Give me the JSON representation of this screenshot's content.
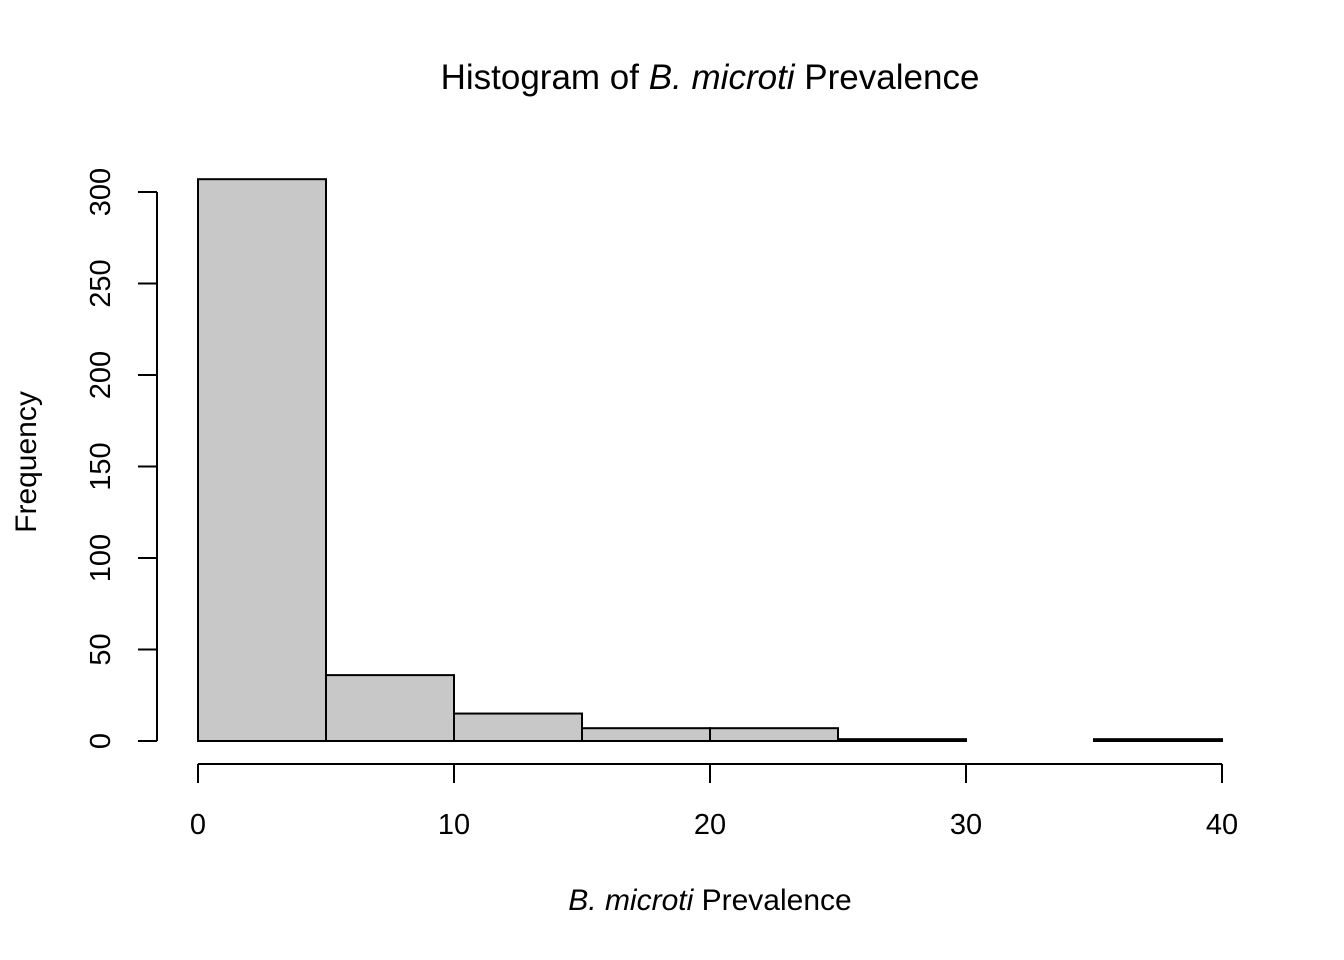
{
  "chart_data": {
    "type": "bar",
    "title_prefix": "Histogram of ",
    "title_italic": "B. microti",
    "title_suffix": " Prevalence",
    "xlabel_italic": "B. microti",
    "xlabel_suffix": " Prevalence",
    "ylabel": "Frequency",
    "bins": [
      {
        "start": 0,
        "end": 5,
        "count": 307
      },
      {
        "start": 5,
        "end": 10,
        "count": 36
      },
      {
        "start": 10,
        "end": 15,
        "count": 15
      },
      {
        "start": 15,
        "end": 20,
        "count": 7
      },
      {
        "start": 20,
        "end": 25,
        "count": 7
      },
      {
        "start": 25,
        "end": 30,
        "count": 1
      },
      {
        "start": 30,
        "end": 35,
        "count": 0
      },
      {
        "start": 35,
        "end": 40,
        "count": 1
      }
    ],
    "xlim": [
      0,
      40
    ],
    "ylim": [
      0,
      300
    ],
    "xticks": [
      "0",
      "10",
      "20",
      "30",
      "40"
    ],
    "yticks": [
      "0",
      "50",
      "100",
      "150",
      "200",
      "250",
      "300"
    ],
    "bar_color": "#c8c8c8",
    "grid": false,
    "legend": "none"
  }
}
